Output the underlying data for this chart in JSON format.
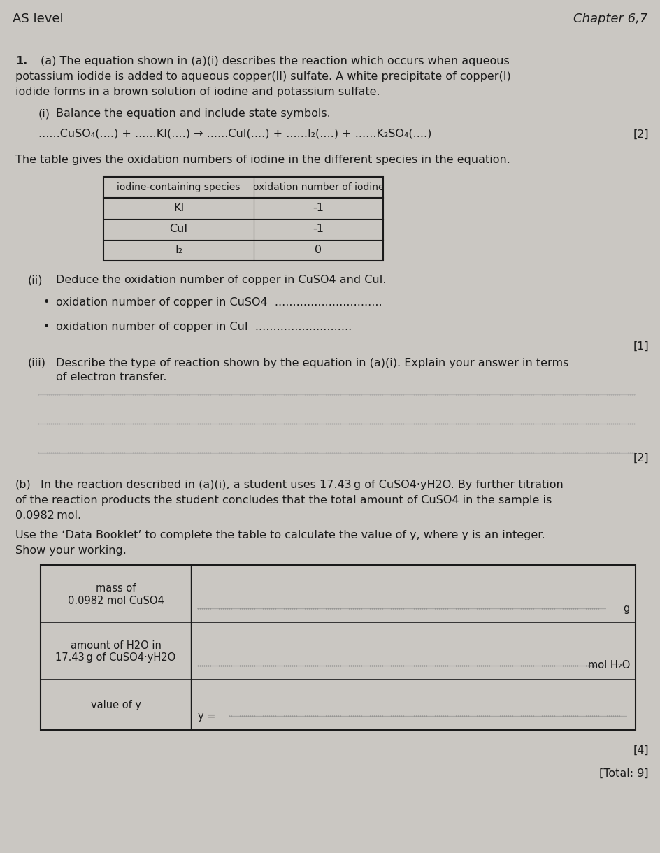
{
  "bg_color": "#cac7c2",
  "text_color": "#1a1a1a",
  "header_left": "AS level",
  "header_right": "Chapter 6,7",
  "q_a_text_line1": "(a) The equation shown in (a)(i) describes the reaction which occurs when aqueous",
  "q_a_text_line2": "potassium iodide is added to aqueous copper(II) sulfate. A white precipitate of copper(I)",
  "q_a_text_line3": "iodide forms in a brown solution of iodine and potassium sulfate.",
  "qi_label": "(i)",
  "qi_text": "Balance the equation and include state symbols.",
  "eq_part1": "......CuSO",
  "eq_part2": "4",
  "eq_part3": "(....) + ......KI(....) → ......CuI(....) + ......I",
  "eq_part4": "2",
  "eq_part5": "(....) + ......K",
  "eq_part6": "2",
  "eq_part7": "SO",
  "eq_part8": "4",
  "eq_part9": "(....)",
  "marks_2a": "[2]",
  "table_intro": "The table gives the oxidation numbers of iodine in the different species in the equation.",
  "table_header1": "iodine-containing species",
  "table_header2": "oxidation number of iodine",
  "table_rows": [
    [
      "KI",
      "-1"
    ],
    [
      "CuI",
      "-1"
    ],
    [
      "I₂",
      "0"
    ]
  ],
  "qii_label": "(ii)",
  "qii_text": "Deduce the oxidation number of copper in CuSO",
  "qii_text2": "4",
  "qii_text3": " and CuI.",
  "bullet_dot": "•",
  "bullet1_text": "oxidation number of copper in CuSO",
  "bullet1_sub": "4",
  "bullet1_dots": "  ...............................",
  "bullet2_text": "oxidation number of copper in CuI",
  "bullet2_dots": "  ...............................",
  "marks_1": "[1]",
  "qiii_label": "(iii)",
  "qiii_text1": "Describe the type of reaction shown by the equation in (a)(i). Explain your answer in terms",
  "qiii_text2": "of electron transfer.",
  "marks_2b": "[2]",
  "qb_label": "(b)",
  "qb_text1": "In the reaction described in (a)(i), a student uses 17.43 g of CuSO",
  "qb_text1b": "4",
  "qb_text1c": "·yH",
  "qb_text1d": "2",
  "qb_text1e": "O. By further titration",
  "qb_text2": "of the reaction products the student concludes that the total amount of CuSO",
  "qb_text2b": "4",
  "qb_text2c": " in the sample is",
  "qb_text3": "0.0982 mol.",
  "qb_instruction1": "Use the ‘Data Booklet’ to complete the table to calculate the value of y, where y is an integer.",
  "qb_instruction2": "Show your working.",
  "table2_row1_label1": "mass of",
  "table2_row1_label2": "0.0982 mol CuSO",
  "table2_row1_label2b": "4",
  "table2_row2_label1": "amount of H",
  "table2_row2_label1b": "2",
  "table2_row2_label1c": "O in",
  "table2_row2_label2": "17.43 g of CuSO",
  "table2_row2_label2b": "4",
  "table2_row2_label2c": "·yH",
  "table2_row2_label2d": "2",
  "table2_row2_label2e": "O",
  "table2_row3_label": "value of y",
  "marks_4": "[4]",
  "total": "[Total: 9]"
}
